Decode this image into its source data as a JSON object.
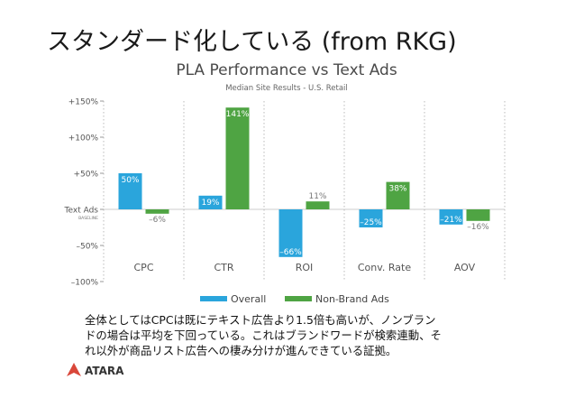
{
  "slide": {
    "title": "スタンダード化している (from RKG)",
    "caption_lines": [
      "全体としてはCPCは既にテキスト広告より1.5倍も高いが、ノンブラン",
      "ドの場合は平均を下回っている。これはブランドワードが検索連動、そ",
      "れ以外が商品リスト広告への棲み分けが進んできている証拠。"
    ],
    "logo_text": "ATARA"
  },
  "colors": {
    "overall": "#2aa5dc",
    "non_brand": "#4fa443",
    "title": "#4a4a4a",
    "axis_text": "#555555"
  },
  "chart_data": {
    "type": "bar",
    "title": "PLA Performance vs Text Ads",
    "subtitle": "Median Site Results - U.S. Retail",
    "categories": [
      "CPC",
      "CTR",
      "ROI",
      "Conv. Rate",
      "AOV"
    ],
    "series": [
      {
        "name": "Overall",
        "values": [
          50,
          19,
          -66,
          -25,
          -21
        ],
        "labels": [
          "50%",
          "19%",
          "–66%",
          "–25%",
          "–21%"
        ]
      },
      {
        "name": "Non-Brand Ads",
        "values": [
          -6,
          141,
          11,
          38,
          -16
        ],
        "labels": [
          "–6%",
          "141%",
          "11%",
          "38%",
          "–16%"
        ]
      }
    ],
    "ylim": [
      -100,
      150
    ],
    "yticks": [
      150,
      100,
      50,
      0,
      -50,
      -100
    ],
    "ytick_labels": [
      "+150%",
      "+100%",
      "+50%",
      "Text Ads",
      "–50%",
      "–100%"
    ],
    "baseline_sublabel": "BASELINE",
    "legend_position": "bottom",
    "grid": "vertical dotted separators"
  }
}
